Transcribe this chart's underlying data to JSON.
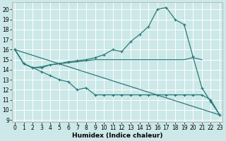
{
  "xlabel": "Humidex (Indice chaleur)",
  "bg_color": "#cce8e8",
  "line_color": "#2a7a7a",
  "grid_color": "#ffffff",
  "xlim": [
    -0.3,
    23.3
  ],
  "ylim": [
    8.8,
    20.7
  ],
  "yticks": [
    9,
    10,
    11,
    12,
    13,
    14,
    15,
    16,
    17,
    18,
    19,
    20
  ],
  "xticks": [
    0,
    1,
    2,
    3,
    4,
    5,
    6,
    7,
    8,
    9,
    10,
    11,
    12,
    13,
    14,
    15,
    16,
    17,
    18,
    19,
    20,
    21,
    22,
    23
  ],
  "line_upper": {
    "x": [
      0,
      1,
      2,
      3,
      4,
      5,
      6,
      7,
      8,
      9,
      10,
      11,
      12,
      13,
      14,
      15,
      16,
      17,
      18,
      19,
      20,
      21,
      22,
      23
    ],
    "y": [
      16,
      14.6,
      14.2,
      14.2,
      14.5,
      14.6,
      14.8,
      14.9,
      15.0,
      15.2,
      15.5,
      16.0,
      15.8,
      16.8,
      17.5,
      18.3,
      20.0,
      20.2,
      19.0,
      18.5,
      15.3,
      12.2,
      10.8,
      9.5
    ]
  },
  "line_diagonal": {
    "x": [
      0,
      23
    ],
    "y": [
      16,
      9.5
    ]
  },
  "line_flat": {
    "x": [
      0,
      1,
      2,
      3,
      4,
      5,
      6,
      7,
      8,
      9,
      10,
      11,
      12,
      13,
      14,
      15,
      16,
      17,
      18,
      19,
      20,
      21
    ],
    "y": [
      16,
      14.6,
      14.2,
      14.3,
      14.5,
      14.6,
      14.7,
      14.8,
      14.9,
      15.0,
      15.0,
      15.0,
      15.0,
      15.0,
      15.0,
      15.0,
      15.0,
      15.0,
      15.0,
      15.0,
      15.2,
      15.0
    ]
  },
  "line_lower": {
    "x": [
      0,
      1,
      2,
      3,
      4,
      5,
      6,
      7,
      8,
      9,
      10,
      11,
      12,
      13,
      14,
      15,
      16,
      17,
      18,
      19,
      20,
      21,
      22,
      23
    ],
    "y": [
      16,
      14.6,
      14.2,
      13.8,
      13.4,
      13.0,
      12.8,
      12.0,
      12.2,
      11.5,
      11.5,
      11.5,
      11.5,
      11.5,
      11.5,
      11.5,
      11.5,
      11.5,
      11.5,
      11.5,
      11.5,
      11.5,
      11.0,
      9.5
    ]
  }
}
